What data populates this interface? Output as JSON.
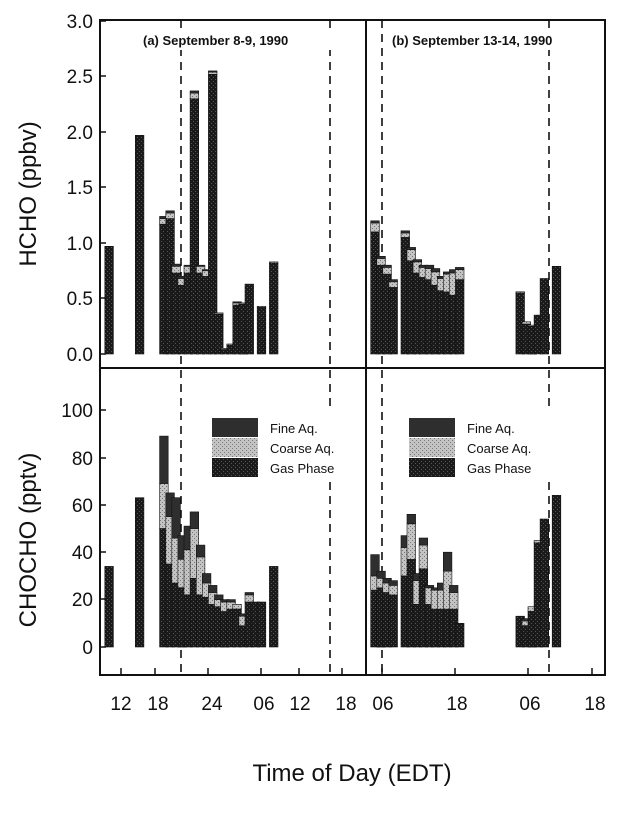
{
  "chart_data": [
    {
      "type": "bar",
      "panel": "HCHO",
      "ylabel": "HCHO (ppbv)",
      "ylim": [
        0,
        3.0
      ],
      "yticks": [
        "0.0",
        "0.5",
        "1.0",
        "1.5",
        "2.0",
        "2.5",
        "3.0"
      ],
      "stack_order": [
        "Gas Phase",
        "Coarse Aq.",
        "Fine Aq."
      ],
      "subpanels": [
        {
          "annotation": "(a) September 8-9, 1990",
          "bars": [
            {
              "x": 12.5,
              "values": [
                0.97,
                0,
                0
              ]
            },
            {
              "x": 17.5,
              "values": [
                1.97,
                0,
                0
              ]
            },
            {
              "x": 21.5,
              "values": [
                1.17,
                0.05,
                0.02
              ]
            },
            {
              "x": 22.5,
              "values": [
                1.22,
                0.05,
                0.02
              ]
            },
            {
              "x": 23.5,
              "values": [
                0.73,
                0.06,
                0.02
              ]
            },
            {
              "x": 24.5,
              "values": [
                0.62,
                0.06,
                0.02
              ]
            },
            {
              "x": 25.5,
              "values": [
                0.73,
                0.06,
                0.01
              ]
            },
            {
              "x": 26.5,
              "values": [
                2.3,
                0.05,
                0.02
              ]
            },
            {
              "x": 27.5,
              "values": [
                0.73,
                0.06,
                0.01
              ]
            },
            {
              "x": 28.5,
              "values": [
                0.7,
                0.05,
                0.01
              ]
            },
            {
              "x": 29.5,
              "values": [
                2.52,
                0.02,
                0.01
              ]
            },
            {
              "x": 30.5,
              "values": [
                0.36,
                0.01,
                0
              ]
            },
            {
              "x": 31.5,
              "values": [
                0.04,
                0.01,
                0
              ]
            },
            {
              "x": 32.5,
              "values": [
                0.08,
                0.01,
                0
              ]
            },
            {
              "x": 33.5,
              "values": [
                0.44,
                0.02,
                0.01
              ]
            },
            {
              "x": 34.5,
              "values": [
                0.45,
                0.01,
                0
              ]
            },
            {
              "x": 35.5,
              "values": [
                0.63,
                0,
                0
              ]
            },
            {
              "x": 37.5,
              "values": [
                0.42,
                0.01,
                0
              ]
            },
            {
              "x": 39.5,
              "values": [
                0.82,
                0.01,
                0
              ]
            }
          ]
        },
        {
          "annotation": "(b) September 13-14, 1990",
          "bars": [
            {
              "x": 6.5,
              "values": [
                1.1,
                0.08,
                0.02
              ]
            },
            {
              "x": 7.5,
              "values": [
                0.8,
                0.06,
                0.02
              ]
            },
            {
              "x": 8.5,
              "values": [
                0.72,
                0.06,
                0.02
              ]
            },
            {
              "x": 9.5,
              "values": [
                0.6,
                0.05,
                0.02
              ]
            },
            {
              "x": 11.5,
              "values": [
                1.05,
                0.04,
                0.02
              ]
            },
            {
              "x": 12.5,
              "values": [
                0.84,
                0.1,
                0.02
              ]
            },
            {
              "x": 13.5,
              "values": [
                0.73,
                0.1,
                0.02
              ]
            },
            {
              "x": 14.5,
              "values": [
                0.69,
                0.09,
                0.02
              ]
            },
            {
              "x": 15.5,
              "values": [
                0.67,
                0.1,
                0.03
              ]
            },
            {
              "x": 16.5,
              "values": [
                0.62,
                0.12,
                0.03
              ]
            },
            {
              "x": 17.5,
              "values": [
                0.57,
                0.11,
                0.02
              ]
            },
            {
              "x": 18.5,
              "values": [
                0.56,
                0.16,
                0.02
              ]
            },
            {
              "x": 19.5,
              "values": [
                0.53,
                0.2,
                0.03
              ]
            },
            {
              "x": 20.5,
              "values": [
                0.67,
                0.09,
                0.02
              ]
            },
            {
              "x": 30.5,
              "values": [
                0.55,
                0.01,
                0
              ]
            },
            {
              "x": 31.5,
              "values": [
                0.27,
                0.02,
                0
              ]
            },
            {
              "x": 32.5,
              "values": [
                0.25,
                0.01,
                0
              ]
            },
            {
              "x": 33.5,
              "values": [
                0.35,
                0,
                0
              ]
            },
            {
              "x": 34.5,
              "values": [
                0.68,
                0,
                0
              ]
            },
            {
              "x": 36.5,
              "values": [
                0.79,
                0,
                0
              ]
            }
          ]
        }
      ]
    },
    {
      "type": "bar",
      "panel": "CHOCHO",
      "ylabel": "CHOCHO (pptv)",
      "ylim": [
        0,
        110
      ],
      "yticks": [
        "0",
        "20",
        "40",
        "60",
        "80",
        "100"
      ],
      "xlabel": "Time of Day (EDT)",
      "legend": [
        "Fine Aq.",
        "Coarse Aq.",
        "Gas Phase"
      ],
      "stack_order": [
        "Gas Phase",
        "Coarse Aq.",
        "Fine Aq."
      ],
      "subpanels": [
        {
          "xticks": [
            "12",
            "18",
            "24",
            "06",
            "12",
            "18"
          ],
          "bars": [
            {
              "x": 12.5,
              "values": [
                34,
                0,
                0
              ]
            },
            {
              "x": 17.5,
              "values": [
                63,
                0,
                0
              ]
            },
            {
              "x": 21.5,
              "values": [
                50,
                19,
                20
              ]
            },
            {
              "x": 22.5,
              "values": [
                35,
                20,
                10
              ]
            },
            {
              "x": 23.5,
              "values": [
                27,
                19,
                17
              ]
            },
            {
              "x": 24.5,
              "values": [
                25,
                12,
                10
              ]
            },
            {
              "x": 25.5,
              "values": [
                22,
                19,
                10
              ]
            },
            {
              "x": 26.5,
              "values": [
                29,
                21,
                7
              ]
            },
            {
              "x": 27.5,
              "values": [
                22,
                16,
                5
              ]
            },
            {
              "x": 28.5,
              "values": [
                21,
                6,
                4
              ]
            },
            {
              "x": 29.5,
              "values": [
                18,
                5,
                3
              ]
            },
            {
              "x": 30.5,
              "values": [
                17,
                3,
                2
              ]
            },
            {
              "x": 31.5,
              "values": [
                15,
                4,
                1
              ]
            },
            {
              "x": 32.5,
              "values": [
                16,
                3,
                1
              ]
            },
            {
              "x": 33.5,
              "values": [
                16,
                2,
                0
              ]
            },
            {
              "x": 34.5,
              "values": [
                9,
                4,
                1
              ]
            },
            {
              "x": 35.5,
              "values": [
                19,
                3,
                1
              ]
            },
            {
              "x": 36.5,
              "values": [
                19,
                0,
                0
              ]
            },
            {
              "x": 37.5,
              "values": [
                19,
                0,
                0
              ]
            },
            {
              "x": 39.5,
              "values": [
                34,
                0,
                0
              ]
            }
          ]
        },
        {
          "xticks": [
            "06",
            "18",
            "06",
            "18"
          ],
          "bars": [
            {
              "x": 6.5,
              "values": [
                24,
                6,
                9
              ]
            },
            {
              "x": 7.5,
              "values": [
                25,
                4,
                3
              ]
            },
            {
              "x": 8.5,
              "values": [
                23,
                4,
                2
              ]
            },
            {
              "x": 9.5,
              "values": [
                22,
                4,
                2
              ]
            },
            {
              "x": 11.5,
              "values": [
                30,
                12,
                5
              ]
            },
            {
              "x": 12.5,
              "values": [
                37,
                15,
                4
              ]
            },
            {
              "x": 13.5,
              "values": [
                18,
                10,
                3
              ]
            },
            {
              "x": 14.5,
              "values": [
                33,
                10,
                3
              ]
            },
            {
              "x": 15.5,
              "values": [
                18,
                7,
                1
              ]
            },
            {
              "x": 16.5,
              "values": [
                16,
                8,
                1
              ]
            },
            {
              "x": 17.5,
              "values": [
                16,
                8,
                3
              ]
            },
            {
              "x": 18.5,
              "values": [
                16,
                16,
                8
              ]
            },
            {
              "x": 19.5,
              "values": [
                16,
                7,
                3
              ]
            },
            {
              "x": 20.5,
              "values": [
                10,
                0,
                0
              ]
            },
            {
              "x": 30.5,
              "values": [
                13,
                0,
                0
              ]
            },
            {
              "x": 31.5,
              "values": [
                9,
                2,
                1
              ]
            },
            {
              "x": 32.5,
              "values": [
                15,
                2,
                0
              ]
            },
            {
              "x": 33.5,
              "values": [
                44,
                1,
                0
              ]
            },
            {
              "x": 34.5,
              "values": [
                54,
                0,
                0
              ]
            },
            {
              "x": 36.5,
              "values": [
                64,
                0,
                0
              ]
            }
          ]
        }
      ]
    }
  ],
  "colors": {
    "gas_phase": "#141414",
    "coarse_aq": "#bdbdbd",
    "fine_aq": "#2e2e2e"
  }
}
